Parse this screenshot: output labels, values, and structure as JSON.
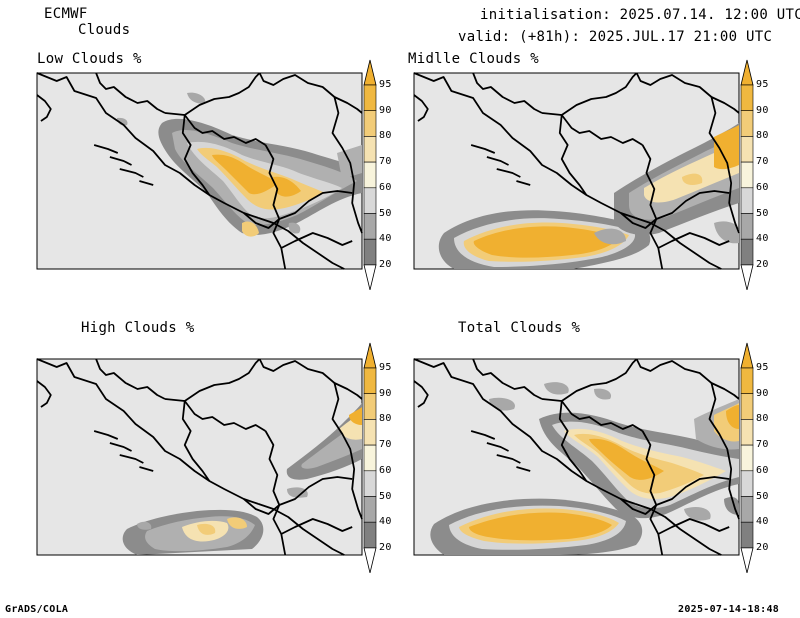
{
  "header": {
    "model": "ECMWF",
    "product": "Clouds",
    "initialisation": "initialisation: 2025.07.14. 12:00 UTC",
    "valid": "valid: (+81h): 2025.JUL.17 21:00 UTC"
  },
  "panels": [
    {
      "id": "low",
      "title": "Low Clouds %"
    },
    {
      "id": "middle",
      "title": "Midlle Clouds %"
    },
    {
      "id": "high",
      "title": "High Clouds %"
    },
    {
      "id": "total",
      "title": "Total Clouds %"
    }
  ],
  "colorbar": {
    "labels": [
      "95",
      "90",
      "80",
      "70",
      "60",
      "50",
      "40",
      "20"
    ],
    "colors": {
      "above95": "#f0b030",
      "90-95": "#f0b840",
      "80-90": "#f2cc78",
      "70-80": "#f5e2b2",
      "60-70": "#f8f4dc",
      "50-60": "#d8d8d8",
      "40-50": "#a8a8a8",
      "20-40": "#808080",
      "below20": "#545454"
    }
  },
  "footer": {
    "left": "GrADS/COLA",
    "right": "2025-07-14-18:48"
  }
}
